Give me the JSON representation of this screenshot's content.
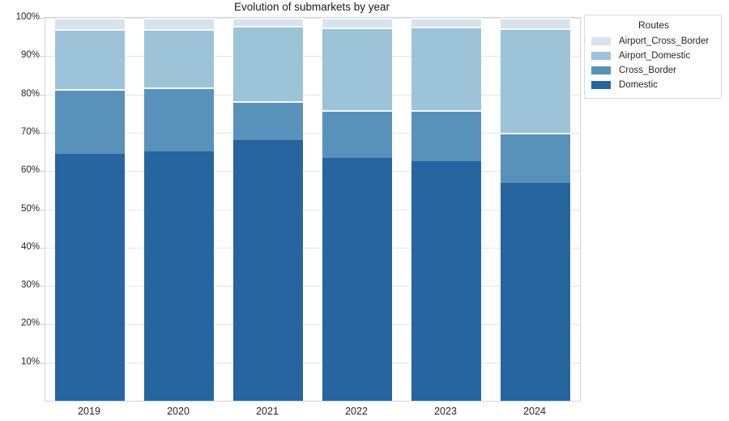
{
  "chart_data": {
    "type": "bar",
    "variant": "stacked-percent",
    "title": "Evolution of submarkets by year",
    "xlabel": "",
    "ylabel": "",
    "categories": [
      "2019",
      "2020",
      "2021",
      "2022",
      "2023",
      "2024"
    ],
    "series": [
      {
        "name": "Airport_Cross_Border",
        "color": "#d8e3ee",
        "values": [
          3.0,
          3.0,
          2.2,
          2.5,
          2.3,
          2.7
        ]
      },
      {
        "name": "Airport_Domestic",
        "color": "#9cc3d8",
        "values": [
          15.5,
          15.2,
          19.6,
          21.6,
          21.9,
          27.3
        ]
      },
      {
        "name": "Cross_Border",
        "color": "#5892bb",
        "values": [
          17.0,
          16.6,
          10.2,
          12.5,
          13.3,
          13.2
        ]
      },
      {
        "name": "Domestic",
        "color": "#2765a0",
        "values": [
          64.5,
          65.2,
          68.0,
          63.4,
          62.5,
          56.8
        ]
      }
    ],
    "stack_order_bottom_to_top": [
      "Domestic",
      "Cross_Border",
      "Airport_Domestic",
      "Airport_Cross_Border"
    ],
    "ylim": [
      0,
      100
    ],
    "yticks": [
      {
        "value": 10,
        "label": "10%"
      },
      {
        "value": 20,
        "label": "20%"
      },
      {
        "value": 30,
        "label": "30%"
      },
      {
        "value": 40,
        "label": "40%"
      },
      {
        "value": 50,
        "label": "50%"
      },
      {
        "value": 60,
        "label": "60%"
      },
      {
        "value": 70,
        "label": "70%"
      },
      {
        "value": 80,
        "label": "80%"
      },
      {
        "value": 90,
        "label": "90%"
      },
      {
        "value": 100,
        "label": "100%"
      }
    ],
    "grid": true,
    "legend": {
      "title": "Routes",
      "position": "outside-upper-right",
      "entries": [
        "Airport_Cross_Border",
        "Airport_Domestic",
        "Cross_Border",
        "Domestic"
      ]
    }
  },
  "style": {
    "grid_color": "#e4e4e6",
    "spine_color": "#d4d4d6",
    "text_color": "#262626",
    "background": "#ffffff",
    "segment_separator": "#f4f9fd"
  }
}
